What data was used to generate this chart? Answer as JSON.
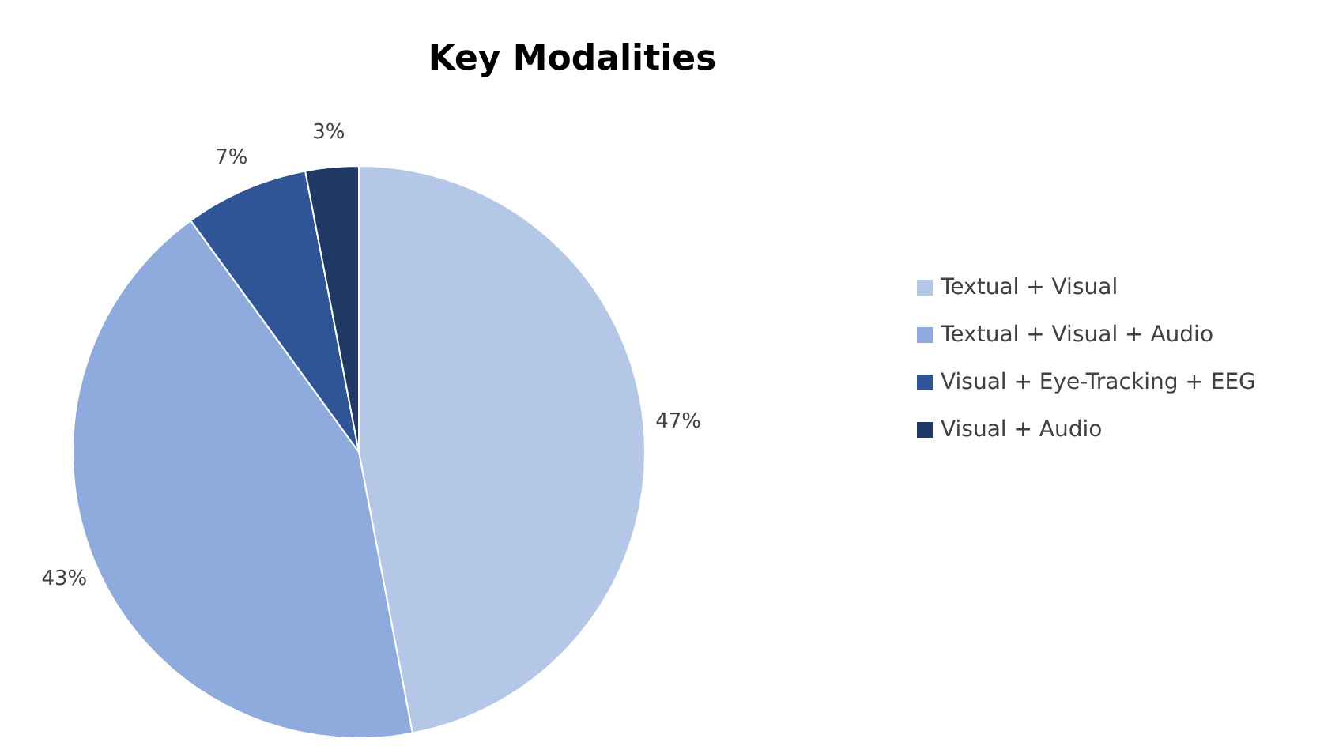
{
  "chart_data": {
    "type": "pie",
    "title": "Key Modalities",
    "categories": [
      "Textual + Visual",
      "Textual + Visual + Audio",
      "Visual + Eye-Tracking + EEG",
      "Visual + Audio"
    ],
    "values": [
      47,
      43,
      7,
      3
    ],
    "value_labels": [
      "47%",
      "43%",
      "7%",
      "3%"
    ],
    "colors": [
      "#b4c7e7",
      "#8faadc",
      "#2f5597",
      "#1f3864"
    ],
    "legend": "right"
  }
}
